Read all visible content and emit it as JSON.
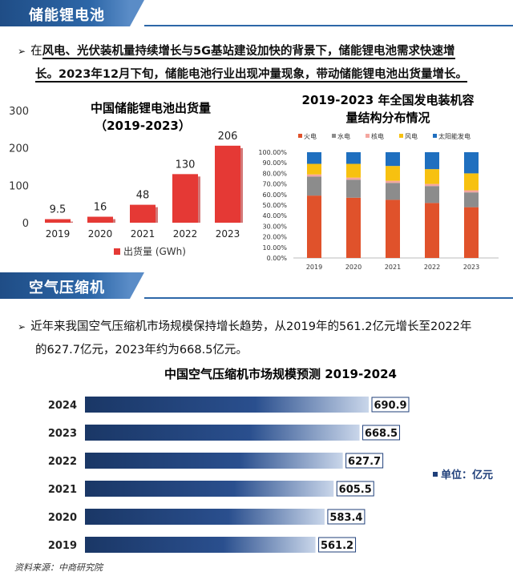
{
  "section1": {
    "title": "储能锂电池",
    "paragraph_prefix": "在",
    "paragraph_line1": "风电、光伏装机量持续增长与5G基站建设加快的背景下，储能锂电池需求快速增",
    "paragraph_line2": "长。2023年12月下旬，储能电池行业出现冲量现象，带动储能锂电池出货量增长。"
  },
  "section2": {
    "title": "空气压缩机",
    "paragraph_line1": "近年来我国空气压缩机市场规模保持增长趋势，从2019年的561.2亿元增长至2022年",
    "paragraph_line2": "的627.7亿元，2023年约为668.5亿元。"
  },
  "source": "资料来源：中商研究院",
  "chart_data": [
    {
      "type": "bar",
      "title": "中国储能锂电池出货量",
      "subtitle": "（2019-2023）",
      "categories": [
        "2019",
        "2020",
        "2021",
        "2022",
        "2023"
      ],
      "values": [
        9.5,
        16,
        48,
        130,
        206
      ],
      "data_labels": [
        "9.5",
        "16",
        "48",
        "130",
        "206"
      ],
      "ylim": [
        0,
        300
      ],
      "yticks": [
        "0",
        "100",
        "200",
        "300"
      ],
      "legend": "出货量 (GWh)",
      "legend_position": "bottom",
      "color": "#e53935"
    },
    {
      "type": "bar",
      "stacked": true,
      "title": "2019-2023 年全国发电装机容量结构分布情况",
      "title_line1": "2019-2023 年全国发电装机容",
      "title_line2": "量结构分布情况",
      "categories": [
        "2019",
        "2020",
        "2021",
        "2022",
        "2023"
      ],
      "yticks": [
        "0.00%",
        "10.00%",
        "20.00%",
        "30.00%",
        "40.00%",
        "50.00%",
        "60.00%",
        "70.00%",
        "80.00%",
        "90.00%",
        "100.00%"
      ],
      "ylim": [
        0,
        100
      ],
      "legend_position": "top",
      "series": [
        {
          "name": "火电",
          "color": "#e0522b",
          "values": [
            59,
            57,
            55,
            52,
            48
          ]
        },
        {
          "name": "水电",
          "color": "#8c8c8c",
          "values": [
            18,
            17,
            16,
            16,
            14
          ]
        },
        {
          "name": "核电",
          "color": "#f4a6a0",
          "values": [
            2,
            2,
            2,
            2,
            2
          ]
        },
        {
          "name": "风电",
          "color": "#f7c110",
          "values": [
            10,
            13,
            14,
            14,
            16
          ]
        },
        {
          "name": "太阳能发电",
          "color": "#1f6fbf",
          "values": [
            11,
            11,
            13,
            16,
            20
          ]
        }
      ]
    },
    {
      "type": "bar",
      "orientation": "horizontal",
      "title": "中国空气压缩机市场规模预测 2019-2024",
      "categories": [
        "2024",
        "2023",
        "2022",
        "2021",
        "2020",
        "2019"
      ],
      "values": [
        690.9,
        668.5,
        627.7,
        605.5,
        583.4,
        561.2
      ],
      "data_labels": [
        "690.9",
        "668.5",
        "627.7",
        "605.5",
        "583.4",
        "561.2"
      ],
      "legend": "单位：亿元",
      "legend_position": "right",
      "color": "#1f3f7a"
    }
  ]
}
